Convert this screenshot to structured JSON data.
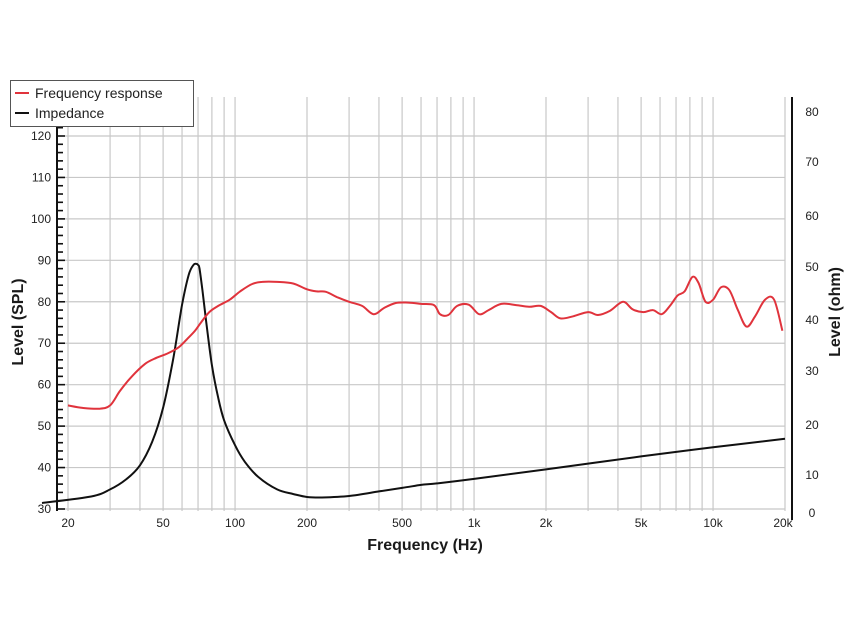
{
  "chart_data": {
    "type": "line",
    "title": "",
    "xlabel": "Frequency (Hz)",
    "ylabel": "Level (SPL)",
    "y2label": "Level (ohm)",
    "xscale": "log",
    "xlim": [
      20,
      20000
    ],
    "ylim": [
      30,
      120
    ],
    "y2lim": [
      0,
      80
    ],
    "grid": true,
    "legend_position": "top-left",
    "x_tick_labels": [
      "20",
      "50",
      "100",
      "200",
      "500",
      "1k",
      "2k",
      "5k",
      "10k",
      "20k"
    ],
    "x_tick_values": [
      20,
      50,
      100,
      200,
      500,
      1000,
      2000,
      5000,
      10000,
      20000
    ],
    "y_tick_labels": [
      "30",
      "40",
      "50",
      "60",
      "70",
      "80",
      "90",
      "100",
      "110",
      "120"
    ],
    "y2_tick_labels": [
      "0",
      "10",
      "20",
      "30",
      "40",
      "50",
      "60",
      "70",
      "80"
    ],
    "series": [
      {
        "name": "Frequency response",
        "axis": "left",
        "color": "#e0333c",
        "x": [
          20,
          23,
          27,
          30,
          33,
          37,
          42,
          47,
          52,
          58,
          63,
          68,
          72,
          78,
          85,
          95,
          105,
          118,
          130,
          150,
          175,
          200,
          220,
          240,
          270,
          300,
          340,
          380,
          420,
          470,
          530,
          600,
          680,
          720,
          780,
          850,
          950,
          1050,
          1150,
          1300,
          1500,
          1700,
          1900,
          2100,
          2300,
          2600,
          3000,
          3300,
          3700,
          4200,
          4600,
          5100,
          5600,
          6100,
          6600,
          7100,
          7600,
          8200,
          8700,
          9300,
          10000,
          10800,
          11700,
          12700,
          13800,
          15000,
          16500,
          18000,
          19500
        ],
        "values": [
          55,
          54.4,
          54.2,
          55,
          58.5,
          62,
          65,
          66.5,
          67.5,
          69,
          71,
          73,
          75,
          77.5,
          79,
          80.5,
          82.5,
          84.3,
          84.8,
          84.8,
          84.4,
          83,
          82.5,
          82.4,
          81,
          80,
          79,
          77,
          78.5,
          79.7,
          79.8,
          79.5,
          79.2,
          77,
          76.8,
          79,
          79.3,
          77,
          78,
          79.5,
          79.2,
          78.8,
          79,
          77.5,
          76,
          76.5,
          77.5,
          76.8,
          77.8,
          80,
          78.2,
          77.5,
          78,
          77,
          79,
          81.5,
          82.5,
          86,
          84.5,
          80,
          80.5,
          83.5,
          82.8,
          78,
          74,
          76.5,
          80.5,
          80.5,
          73
        ]
      },
      {
        "name": "Impedance",
        "axis": "right",
        "color": "#111111",
        "x": [
          20,
          25,
          30,
          35,
          40,
          45,
          50,
          55,
          60,
          64,
          67,
          69,
          70,
          71,
          73,
          76,
          80,
          85,
          90,
          100,
          110,
          125,
          150,
          175,
          200,
          230,
          300,
          400,
          500,
          600,
          700,
          1000,
          2000,
          5000,
          10000,
          20000
        ],
        "values": [
          2,
          3.3,
          4.7,
          6.7,
          9.5,
          14.2,
          21,
          30.5,
          41.5,
          47.5,
          49.5,
          49.7,
          49.5,
          48.8,
          44.5,
          37.5,
          29.5,
          23,
          18.5,
          13.5,
          10.2,
          7.2,
          4.7,
          3.8,
          3.2,
          3.1,
          3.4,
          4.3,
          5,
          5.6,
          5.9,
          6.8,
          8.7,
          11.3,
          13.1,
          14.8
        ]
      }
    ]
  },
  "legend": {
    "items": [
      {
        "label": "Frequency response",
        "color": "#e0333c"
      },
      {
        "label": "Impedance",
        "color": "#111111"
      }
    ]
  },
  "axes": {
    "x_title": "Frequency (Hz)",
    "y_left_title": "Level (SPL)",
    "y_right_title": "Level (ohm)"
  }
}
